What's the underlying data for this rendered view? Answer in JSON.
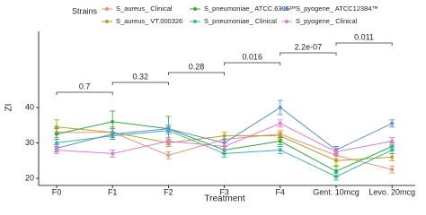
{
  "chart_data": {
    "type": "line",
    "legend_title": "Strains",
    "x_label": "Treatment",
    "y_label": "ZI",
    "categories": [
      "F0",
      "F1",
      "F2",
      "F3",
      "F4",
      "Gent. 10mcg",
      "Levo. 20mcg"
    ],
    "ylim": [
      18,
      61.5
    ],
    "yticks": [
      20,
      30,
      40
    ],
    "series": [
      {
        "name": "S_aureus_ Clinical",
        "color": "#e8957a",
        "values": [
          33,
          33,
          26.5,
          31,
          32.5,
          26.5,
          22.5
        ],
        "errors": [
          1.5,
          1,
          1,
          1,
          1,
          1,
          1
        ]
      },
      {
        "name": "S_aureus_ VT.000326",
        "color": "#b8a31e",
        "values": [
          34.5,
          33,
          30,
          32,
          32,
          25,
          26
        ],
        "errors": [
          2,
          1.5,
          1,
          1,
          1,
          1.5,
          1
        ]
      },
      {
        "name": "S_pneumoniae_ ATCC.6305™",
        "color": "#3aa93a",
        "values": [
          32.5,
          36,
          34,
          28,
          30.5,
          22,
          29
        ],
        "errors": [
          1.5,
          3,
          3.5,
          1,
          1,
          1.5,
          1
        ]
      },
      {
        "name": "S_pneumoniae_ Clinical",
        "color": "#35b5ab",
        "values": [
          30,
          32,
          33.5,
          27,
          28,
          20.5,
          28
        ],
        "errors": [
          1,
          1,
          1,
          1,
          1,
          1,
          1
        ]
      },
      {
        "name": "S_pyogene_ ATCC12384™",
        "color": "#5a8fd8",
        "values": [
          28.5,
          32.5,
          34,
          30,
          40,
          28,
          35.5
        ],
        "errors": [
          1,
          1.5,
          1,
          1,
          2,
          1,
          1
        ]
      },
      {
        "name": "S_pyogene_ Clinical",
        "color": "#e07ccf",
        "values": [
          28,
          27,
          30.5,
          29,
          35.5,
          27.5,
          30.5
        ],
        "errors": [
          1,
          1,
          1,
          1,
          1,
          1,
          1
        ]
      }
    ],
    "annotations": [
      {
        "label": "0.7",
        "x": [
          "F0",
          "F1"
        ]
      },
      {
        "label": "0.32",
        "x": [
          "F1",
          "F2"
        ]
      },
      {
        "label": "0.28",
        "x": [
          "F2",
          "F3"
        ]
      },
      {
        "label": "0.016",
        "x": [
          "F3",
          "F4"
        ]
      },
      {
        "label": "2.2e-07",
        "x": [
          "F4",
          "Gent. 10mcg"
        ]
      },
      {
        "label": "0.011",
        "x": [
          "Gent. 10mcg",
          "Levo. 20mcg"
        ]
      }
    ]
  }
}
